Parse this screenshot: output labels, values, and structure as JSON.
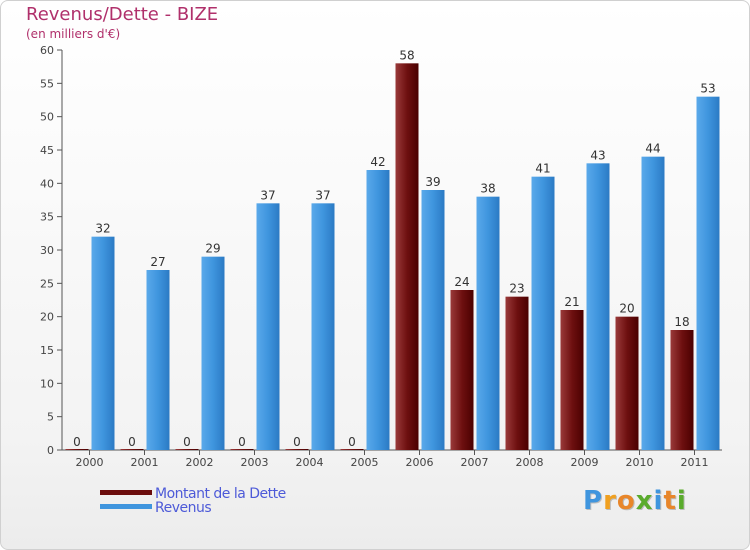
{
  "chart_data": {
    "type": "bar",
    "title": "Revenus/Dette - BIZE",
    "subtitle": "(en milliers d'€)",
    "categories": [
      "2000",
      "2001",
      "2002",
      "2003",
      "2004",
      "2005",
      "2006",
      "2007",
      "2008",
      "2009",
      "2010",
      "2011"
    ],
    "series": [
      {
        "name": "Montant de la Dette",
        "color": "#6b0c0c",
        "values": [
          0,
          0,
          0,
          0,
          0,
          0,
          58,
          24,
          23,
          21,
          20,
          18
        ]
      },
      {
        "name": "Revenus",
        "color": "#3f95de",
        "values": [
          32,
          27,
          29,
          37,
          37,
          42,
          39,
          38,
          41,
          43,
          44,
          53
        ]
      }
    ],
    "yticks": [
      0,
      5,
      10,
      15,
      20,
      25,
      30,
      35,
      40,
      45,
      50,
      55,
      60
    ],
    "ylim": [
      0,
      60
    ],
    "grid": false,
    "legend_position": "bottom-left"
  },
  "legend": {
    "items": [
      {
        "label": "Montant de la Dette",
        "color": "#6b0c0c"
      },
      {
        "label": "Revenus",
        "color": "#3f95de"
      }
    ]
  },
  "logo": {
    "text": "Proxiti",
    "letters": [
      {
        "ch": "P",
        "color": "#3f95de"
      },
      {
        "ch": "r",
        "color": "#f0a020"
      },
      {
        "ch": "o",
        "color": "#e8862a"
      },
      {
        "ch": "x",
        "color": "#5aab2c"
      },
      {
        "ch": "i",
        "color": "#3f95de"
      },
      {
        "ch": "t",
        "color": "#e8862a"
      },
      {
        "ch": "i",
        "color": "#5aab2c"
      }
    ]
  }
}
